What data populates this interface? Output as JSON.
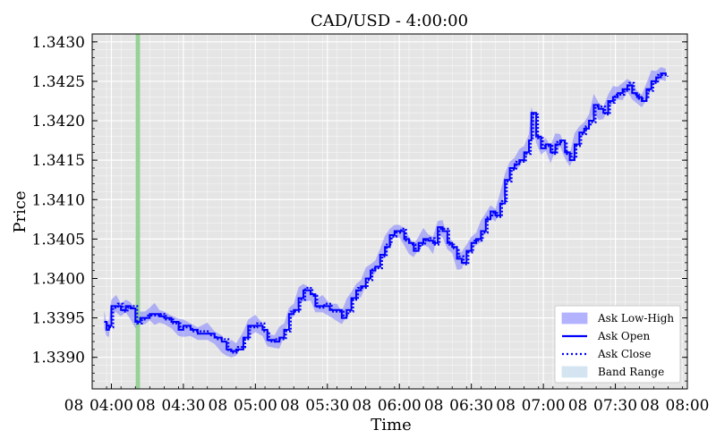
{
  "chart_data": {
    "type": "line",
    "title": "CAD/USD - 4:00:00",
    "xlabel": "Time",
    "ylabel": "Price",
    "xlim": [
      "03:52",
      "08:00"
    ],
    "ylim": [
      1.3386,
      1.3431
    ],
    "grid": true,
    "x_ticks": [
      {
        "t": "04:00",
        "label": "04:00"
      },
      {
        "t": "04:30",
        "label": "04:30"
      },
      {
        "t": "05:00",
        "label": "05:00"
      },
      {
        "t": "05:30",
        "label": "05:30"
      },
      {
        "t": "06:00",
        "label": "06:00"
      },
      {
        "t": "06:30",
        "label": "06:30"
      },
      {
        "t": "07:00",
        "label": "07:00"
      },
      {
        "t": "07:30",
        "label": "07:30"
      },
      {
        "t": "08:00",
        "label": "08:00"
      }
    ],
    "x_tick_prefix": "08",
    "y_ticks": [
      "1.3390",
      "1.3395",
      "1.3400",
      "1.3405",
      "1.3410",
      "1.3415",
      "1.3420",
      "1.3425",
      "1.3430"
    ],
    "vertical_line": {
      "t": "04:11",
      "color": "#8fcf8f"
    },
    "legend": {
      "placement": "lower-right",
      "entries": [
        {
          "label": "Ask Low-High",
          "style": "band",
          "color": "#8080ff"
        },
        {
          "label": "Ask Open",
          "style": "solid",
          "color": "#0000ff"
        },
        {
          "label": "Ask Close",
          "style": "dotted",
          "color": "#0000ff"
        },
        {
          "label": "Band Range",
          "style": "band",
          "color": "#b8d4e8"
        }
      ]
    },
    "series": [
      {
        "name": "Ask Open",
        "points": [
          [
            "03:57",
            1.33945
          ],
          [
            "03:58",
            1.33935
          ],
          [
            "03:59",
            1.3394
          ],
          [
            "04:00",
            1.33965
          ],
          [
            "04:02",
            1.33965
          ],
          [
            "04:04",
            1.3396
          ],
          [
            "04:06",
            1.33965
          ],
          [
            "04:08",
            1.33962
          ],
          [
            "04:10",
            1.33945
          ],
          [
            "04:12",
            1.3395
          ],
          [
            "04:14",
            1.3395
          ],
          [
            "04:16",
            1.33955
          ],
          [
            "04:18",
            1.33955
          ],
          [
            "04:20",
            1.33952
          ],
          [
            "04:22",
            1.3395
          ],
          [
            "04:25",
            1.33945
          ],
          [
            "04:28",
            1.33935
          ],
          [
            "04:30",
            1.3394
          ],
          [
            "04:33",
            1.33935
          ],
          [
            "04:36",
            1.3393
          ],
          [
            "04:40",
            1.3393
          ],
          [
            "04:43",
            1.33925
          ],
          [
            "04:46",
            1.3392
          ],
          [
            "04:48",
            1.3391
          ],
          [
            "04:50",
            1.33908
          ],
          [
            "04:52",
            1.3391
          ],
          [
            "04:55",
            1.33925
          ],
          [
            "04:57",
            1.3394
          ],
          [
            "05:00",
            1.3394
          ],
          [
            "05:03",
            1.33935
          ],
          [
            "05:05",
            1.33922
          ],
          [
            "05:08",
            1.3392
          ],
          [
            "05:10",
            1.33925
          ],
          [
            "05:12",
            1.33935
          ],
          [
            "05:14",
            1.33955
          ],
          [
            "05:16",
            1.3396
          ],
          [
            "05:18",
            1.33975
          ],
          [
            "05:20",
            1.33985
          ],
          [
            "05:23",
            1.3398
          ],
          [
            "05:25",
            1.33965
          ],
          [
            "05:28",
            1.33965
          ],
          [
            "05:31",
            1.3396
          ],
          [
            "05:34",
            1.3396
          ],
          [
            "05:36",
            1.3395
          ],
          [
            "05:38",
            1.3396
          ],
          [
            "05:40",
            1.33975
          ],
          [
            "05:42",
            1.33985
          ],
          [
            "05:44",
            1.3399
          ],
          [
            "05:46",
            1.34
          ],
          [
            "05:48",
            1.3401
          ],
          [
            "05:50",
            1.34015
          ],
          [
            "05:52",
            1.3403
          ],
          [
            "05:54",
            1.3404
          ],
          [
            "05:56",
            1.34055
          ],
          [
            "05:58",
            1.3406
          ],
          [
            "06:00",
            1.3406
          ],
          [
            "06:02",
            1.3405
          ],
          [
            "06:04",
            1.34045
          ],
          [
            "06:06",
            1.34035
          ],
          [
            "06:08",
            1.34045
          ],
          [
            "06:10",
            1.3405
          ],
          [
            "06:12",
            1.34048
          ],
          [
            "06:14",
            1.34045
          ],
          [
            "06:16",
            1.34065
          ],
          [
            "06:18",
            1.3406
          ],
          [
            "06:20",
            1.34045
          ],
          [
            "06:22",
            1.3404
          ],
          [
            "06:24",
            1.34025
          ],
          [
            "06:26",
            1.3402
          ],
          [
            "06:28",
            1.34035
          ],
          [
            "06:30",
            1.34045
          ],
          [
            "06:32",
            1.3405
          ],
          [
            "06:34",
            1.3406
          ],
          [
            "06:36",
            1.34075
          ],
          [
            "06:38",
            1.34085
          ],
          [
            "06:40",
            1.3408
          ],
          [
            "06:42",
            1.34095
          ],
          [
            "06:44",
            1.34125
          ],
          [
            "06:46",
            1.3414
          ],
          [
            "06:48",
            1.34145
          ],
          [
            "06:50",
            1.3415
          ],
          [
            "06:52",
            1.3416
          ],
          [
            "06:54",
            1.34175
          ],
          [
            "06:55",
            1.3421
          ],
          [
            "06:57",
            1.3418
          ],
          [
            "06:59",
            1.34165
          ],
          [
            "07:01",
            1.3417
          ],
          [
            "07:03",
            1.3416
          ],
          [
            "07:05",
            1.3417
          ],
          [
            "07:07",
            1.34175
          ],
          [
            "07:09",
            1.3416
          ],
          [
            "07:11",
            1.3415
          ],
          [
            "07:13",
            1.3417
          ],
          [
            "07:15",
            1.34185
          ],
          [
            "07:17",
            1.3419
          ],
          [
            "07:19",
            1.342
          ],
          [
            "07:21",
            1.3422
          ],
          [
            "07:23",
            1.34215
          ],
          [
            "07:25",
            1.3421
          ],
          [
            "07:27",
            1.34225
          ],
          [
            "07:29",
            1.3423
          ],
          [
            "07:31",
            1.34235
          ],
          [
            "07:33",
            1.3424
          ],
          [
            "07:35",
            1.34245
          ],
          [
            "07:37",
            1.34235
          ],
          [
            "07:39",
            1.3423
          ],
          [
            "07:41",
            1.34225
          ],
          [
            "07:43",
            1.3424
          ],
          [
            "07:45",
            1.3425
          ],
          [
            "07:47",
            1.34255
          ],
          [
            "07:49",
            1.3426
          ],
          [
            "07:51",
            1.34258
          ]
        ]
      }
    ]
  }
}
